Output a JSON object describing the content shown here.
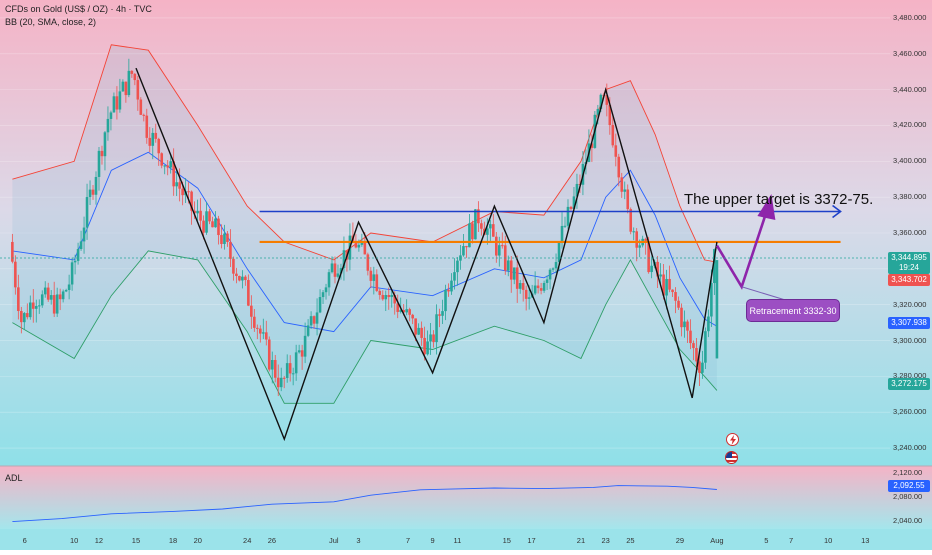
{
  "header": {
    "title": "CFDs on Gold (US$ / OZ) · 4h · TVC",
    "indicator": "BB (20, SMA, close, 2)"
  },
  "adl_panel": {
    "label": "ADL"
  },
  "annotations": {
    "target_text": "The upper target is 3372-75.",
    "retracement_label": "Retracement 3332-30"
  },
  "price_tags": {
    "current_price": "3,344.895",
    "countdown": "19:24",
    "bb_upper": "3,343.702",
    "bb_middle": "3,307.938",
    "bb_lower": "3,272.175",
    "adl_value": "2,092.55"
  },
  "colors": {
    "up_candle": "#26a69a",
    "down_candle": "#ef5350",
    "bb_upper": "#f44336",
    "bb_middle": "#2962ff",
    "bb_lower": "#2e9e68",
    "resistance_line": "#f57c00",
    "target_line": "#1e40c8",
    "projection_arrow": "#8e24aa",
    "current_price_tag": "#26a69a",
    "bb_upper_tag": "#ef5350",
    "bb_middle_tag": "#2962ff",
    "bb_lower_tag": "#26a69a",
    "adl_tag": "#2962ff"
  },
  "icons": [
    "lightning-event-icon",
    "us-flag-event-icon"
  ],
  "chart_data": {
    "type": "candlestick",
    "title": "CFDs on Gold (US$ / OZ) · 4h · TVC",
    "y_ticks": [
      3240,
      3260,
      3280,
      3300,
      3320,
      3340,
      3360,
      3380,
      3400,
      3420,
      3440,
      3460,
      3480
    ],
    "y_tick_labels": [
      "3,240.000",
      "3,260.000",
      "3,280.000",
      "3,300.000",
      "3,320.000",
      "3,340.000",
      "3,360.000",
      "3,380.000",
      "3,400.000",
      "3,420.000",
      "3,440.000",
      "3,460.000",
      "3,480.000"
    ],
    "ylim": [
      3230,
      3490
    ],
    "x_tick_labels": [
      "6",
      "10",
      "12",
      "15",
      "18",
      "20",
      "24",
      "26",
      "Jul",
      "3",
      "7",
      "9",
      "11",
      "15",
      "17",
      "21",
      "23",
      "25",
      "29",
      "Aug",
      "5",
      "7",
      "10",
      "13"
    ],
    "x_tick_dates": [
      "2025-06-06",
      "2025-06-10",
      "2025-06-12",
      "2025-06-15",
      "2025-06-18",
      "2025-06-20",
      "2025-06-24",
      "2025-06-26",
      "2025-07-01",
      "2025-07-03",
      "2025-07-07",
      "2025-07-09",
      "2025-07-11",
      "2025-07-15",
      "2025-07-17",
      "2025-07-21",
      "2025-07-23",
      "2025-07-25",
      "2025-07-29",
      "2025-08-01",
      "2025-08-05",
      "2025-08-07",
      "2025-08-10",
      "2025-08-13"
    ],
    "price_path": [
      {
        "t": "2025-06-05",
        "p": 3355
      },
      {
        "t": "2025-06-06",
        "p": 3310
      },
      {
        "t": "2025-06-07",
        "p": 3325
      },
      {
        "t": "2025-06-09",
        "p": 3320
      },
      {
        "t": "2025-06-10",
        "p": 3335
      },
      {
        "t": "2025-06-12",
        "p": 3395
      },
      {
        "t": "2025-06-13",
        "p": 3425
      },
      {
        "t": "2025-06-15",
        "p": 3450
      },
      {
        "t": "2025-06-16",
        "p": 3420
      },
      {
        "t": "2025-06-18",
        "p": 3395
      },
      {
        "t": "2025-06-20",
        "p": 3370
      },
      {
        "t": "2025-06-22",
        "p": 3360
      },
      {
        "t": "2025-06-24",
        "p": 3330
      },
      {
        "t": "2025-06-26",
        "p": 3290
      },
      {
        "t": "2025-06-27",
        "p": 3275
      },
      {
        "t": "2025-06-29",
        "p": 3300
      },
      {
        "t": "2025-07-01",
        "p": 3340
      },
      {
        "t": "2025-07-03",
        "p": 3355
      },
      {
        "t": "2025-07-05",
        "p": 3330
      },
      {
        "t": "2025-07-07",
        "p": 3315
      },
      {
        "t": "2025-07-09",
        "p": 3295
      },
      {
        "t": "2025-07-11",
        "p": 3345
      },
      {
        "t": "2025-07-13",
        "p": 3370
      },
      {
        "t": "2025-07-15",
        "p": 3345
      },
      {
        "t": "2025-07-17",
        "p": 3320
      },
      {
        "t": "2025-07-19",
        "p": 3345
      },
      {
        "t": "2025-07-21",
        "p": 3385
      },
      {
        "t": "2025-07-23",
        "p": 3435
      },
      {
        "t": "2025-07-24",
        "p": 3410
      },
      {
        "t": "2025-07-25",
        "p": 3370
      },
      {
        "t": "2025-07-27",
        "p": 3340
      },
      {
        "t": "2025-07-29",
        "p": 3320
      },
      {
        "t": "2025-07-30",
        "p": 3300
      },
      {
        "t": "2025-07-31",
        "p": 3285
      },
      {
        "t": "2025-08-01",
        "p": 3345
      }
    ],
    "bollinger_bands": {
      "period": 20,
      "type": "SMA",
      "source": "close",
      "stddev": 2,
      "upper": [
        {
          "t": "2025-06-05",
          "p": 3390
        },
        {
          "t": "2025-06-10",
          "p": 3400
        },
        {
          "t": "2025-06-13",
          "p": 3465
        },
        {
          "t": "2025-06-16",
          "p": 3462
        },
        {
          "t": "2025-06-20",
          "p": 3420
        },
        {
          "t": "2025-06-24",
          "p": 3375
        },
        {
          "t": "2025-06-27",
          "p": 3355
        },
        {
          "t": "2025-07-01",
          "p": 3345
        },
        {
          "t": "2025-07-04",
          "p": 3360
        },
        {
          "t": "2025-07-09",
          "p": 3355
        },
        {
          "t": "2025-07-14",
          "p": 3372
        },
        {
          "t": "2025-07-18",
          "p": 3370
        },
        {
          "t": "2025-07-21",
          "p": 3400
        },
        {
          "t": "2025-07-23",
          "p": 3440
        },
        {
          "t": "2025-07-25",
          "p": 3445
        },
        {
          "t": "2025-07-27",
          "p": 3415
        },
        {
          "t": "2025-07-29",
          "p": 3375
        },
        {
          "t": "2025-07-31",
          "p": 3345
        },
        {
          "t": "2025-08-01",
          "p": 3343.702
        }
      ],
      "middle": [
        {
          "t": "2025-06-05",
          "p": 3350
        },
        {
          "t": "2025-06-10",
          "p": 3345
        },
        {
          "t": "2025-06-13",
          "p": 3395
        },
        {
          "t": "2025-06-16",
          "p": 3405
        },
        {
          "t": "2025-06-20",
          "p": 3385
        },
        {
          "t": "2025-06-24",
          "p": 3340
        },
        {
          "t": "2025-06-27",
          "p": 3310
        },
        {
          "t": "2025-07-01",
          "p": 3305
        },
        {
          "t": "2025-07-04",
          "p": 3330
        },
        {
          "t": "2025-07-09",
          "p": 3325
        },
        {
          "t": "2025-07-14",
          "p": 3340
        },
        {
          "t": "2025-07-18",
          "p": 3335
        },
        {
          "t": "2025-07-21",
          "p": 3345
        },
        {
          "t": "2025-07-23",
          "p": 3380
        },
        {
          "t": "2025-07-25",
          "p": 3395
        },
        {
          "t": "2025-07-27",
          "p": 3370
        },
        {
          "t": "2025-07-29",
          "p": 3335
        },
        {
          "t": "2025-07-31",
          "p": 3312
        },
        {
          "t": "2025-08-01",
          "p": 3307.938
        }
      ],
      "lower": [
        {
          "t": "2025-06-05",
          "p": 3310
        },
        {
          "t": "2025-06-10",
          "p": 3290
        },
        {
          "t": "2025-06-13",
          "p": 3325
        },
        {
          "t": "2025-06-16",
          "p": 3350
        },
        {
          "t": "2025-06-20",
          "p": 3345
        },
        {
          "t": "2025-06-24",
          "p": 3305
        },
        {
          "t": "2025-06-27",
          "p": 3265
        },
        {
          "t": "2025-07-01",
          "p": 3265
        },
        {
          "t": "2025-07-04",
          "p": 3300
        },
        {
          "t": "2025-07-09",
          "p": 3295
        },
        {
          "t": "2025-07-14",
          "p": 3308
        },
        {
          "t": "2025-07-18",
          "p": 3300
        },
        {
          "t": "2025-07-21",
          "p": 3290
        },
        {
          "t": "2025-07-23",
          "p": 3320
        },
        {
          "t": "2025-07-25",
          "p": 3345
        },
        {
          "t": "2025-07-27",
          "p": 3320
        },
        {
          "t": "2025-07-29",
          "p": 3295
        },
        {
          "t": "2025-07-31",
          "p": 3280
        },
        {
          "t": "2025-08-01",
          "p": 3272.175
        }
      ]
    },
    "zigzag_pattern": [
      {
        "t": "2025-06-15",
        "p": 3452
      },
      {
        "t": "2025-06-27",
        "p": 3245
      },
      {
        "t": "2025-07-03",
        "p": 3366
      },
      {
        "t": "2025-07-09",
        "p": 3282
      },
      {
        "t": "2025-07-14",
        "p": 3375
      },
      {
        "t": "2025-07-18",
        "p": 3310
      },
      {
        "t": "2025-07-23",
        "p": 3440
      },
      {
        "t": "2025-07-30",
        "p": 3268
      },
      {
        "t": "2025-08-01",
        "p": 3355
      }
    ],
    "horizontal_levels": [
      {
        "name": "resistance",
        "price": 3355,
        "from": "2025-06-25",
        "to": "2025-08-11"
      },
      {
        "name": "upper target",
        "price": 3372,
        "from": "2025-06-25",
        "to": "2025-08-11"
      }
    ],
    "projection_path": [
      {
        "t": "2025-08-01",
        "p": 3353
      },
      {
        "t": "2025-08-03",
        "p": 3330
      },
      {
        "t": "2025-08-05",
        "p": 3365
      }
    ],
    "adl_panel": {
      "y_tick_labels": [
        "2,040.00",
        "2,080.00",
        "2,120.00"
      ],
      "y_ticks": [
        2040,
        2080,
        2120
      ],
      "ylim": [
        2030,
        2125
      ],
      "series": [
        {
          "t": "2025-06-05",
          "v": 2039
        },
        {
          "t": "2025-06-09",
          "v": 2044
        },
        {
          "t": "2025-06-13",
          "v": 2052
        },
        {
          "t": "2025-06-18",
          "v": 2056
        },
        {
          "t": "2025-06-22",
          "v": 2060
        },
        {
          "t": "2025-06-26",
          "v": 2068
        },
        {
          "t": "2025-07-01",
          "v": 2072
        },
        {
          "t": "2025-07-04",
          "v": 2083
        },
        {
          "t": "2025-07-08",
          "v": 2092
        },
        {
          "t": "2025-07-10",
          "v": 2093
        },
        {
          "t": "2025-07-14",
          "v": 2095
        },
        {
          "t": "2025-07-18",
          "v": 2094
        },
        {
          "t": "2025-07-22",
          "v": 2096
        },
        {
          "t": "2025-07-24",
          "v": 2099
        },
        {
          "t": "2025-07-28",
          "v": 2098
        },
        {
          "t": "2025-07-30",
          "v": 2096
        },
        {
          "t": "2025-08-01",
          "v": 2092.55
        }
      ]
    }
  }
}
